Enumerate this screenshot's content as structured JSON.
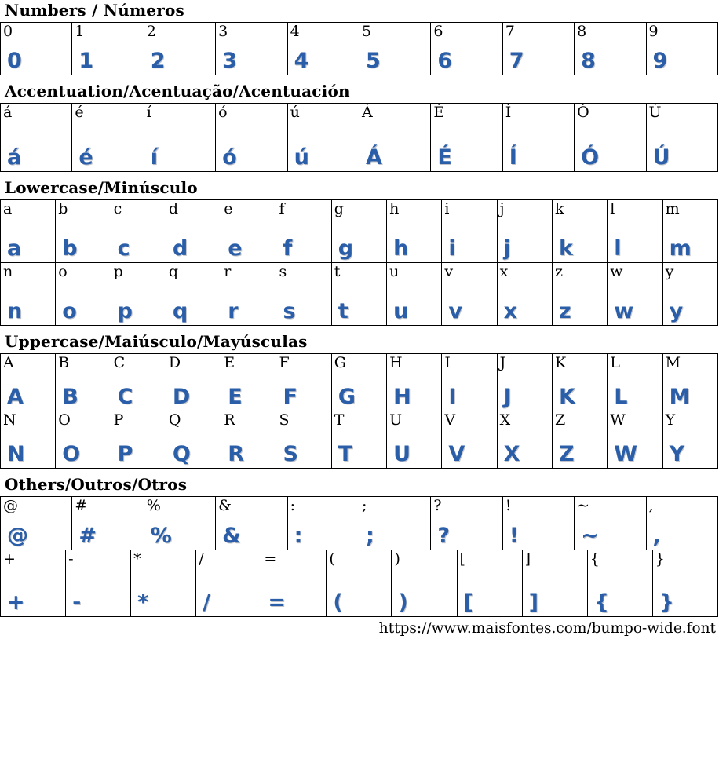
{
  "font_page": {
    "font_name": "bumpo-wide",
    "footer": {
      "url": "https://www.maisfontes.com/bumpo-wide.font"
    },
    "colors": {
      "glyph_blue": "#2b5ea8",
      "label_black": "#000000",
      "border": "#000000",
      "background": "#ffffff"
    },
    "sections": [
      {
        "id": "numbers",
        "title": "Numbers / Números",
        "rows": [
          [
            "0",
            "1",
            "2",
            "3",
            "4",
            "5",
            "6",
            "7",
            "8",
            "9"
          ]
        ]
      },
      {
        "id": "accentuation",
        "title": "Accentuation/Acentuação/Acentuación",
        "rows": [
          [
            "á",
            "é",
            "í",
            "ó",
            "ú",
            "Á",
            "É",
            "Í",
            "Ó",
            "Ú"
          ]
        ]
      },
      {
        "id": "lowercase",
        "title": "Lowercase/Minúsculo",
        "rows": [
          [
            "a",
            "b",
            "c",
            "d",
            "e",
            "f",
            "g",
            "h",
            "i",
            "j",
            "k",
            "l",
            "m"
          ],
          [
            "n",
            "o",
            "p",
            "q",
            "r",
            "s",
            "t",
            "u",
            "v",
            "x",
            "z",
            "w",
            "y"
          ]
        ]
      },
      {
        "id": "uppercase",
        "title": "Uppercase/Maiúsculo/Mayúsculas",
        "rows": [
          [
            "A",
            "B",
            "C",
            "D",
            "E",
            "F",
            "G",
            "H",
            "I",
            "J",
            "K",
            "L",
            "M"
          ],
          [
            "N",
            "O",
            "P",
            "Q",
            "R",
            "S",
            "T",
            "U",
            "V",
            "X",
            "Z",
            "W",
            "Y"
          ]
        ]
      },
      {
        "id": "others",
        "title": "Others/Outros/Otros",
        "rows": [
          [
            "@",
            "#",
            "%",
            "&",
            ":",
            ";",
            "?",
            "!",
            "~",
            ","
          ],
          [
            "+",
            "-",
            "*",
            "/",
            "=",
            "(",
            ")",
            "[",
            "]",
            "{",
            "}"
          ]
        ]
      }
    ]
  }
}
